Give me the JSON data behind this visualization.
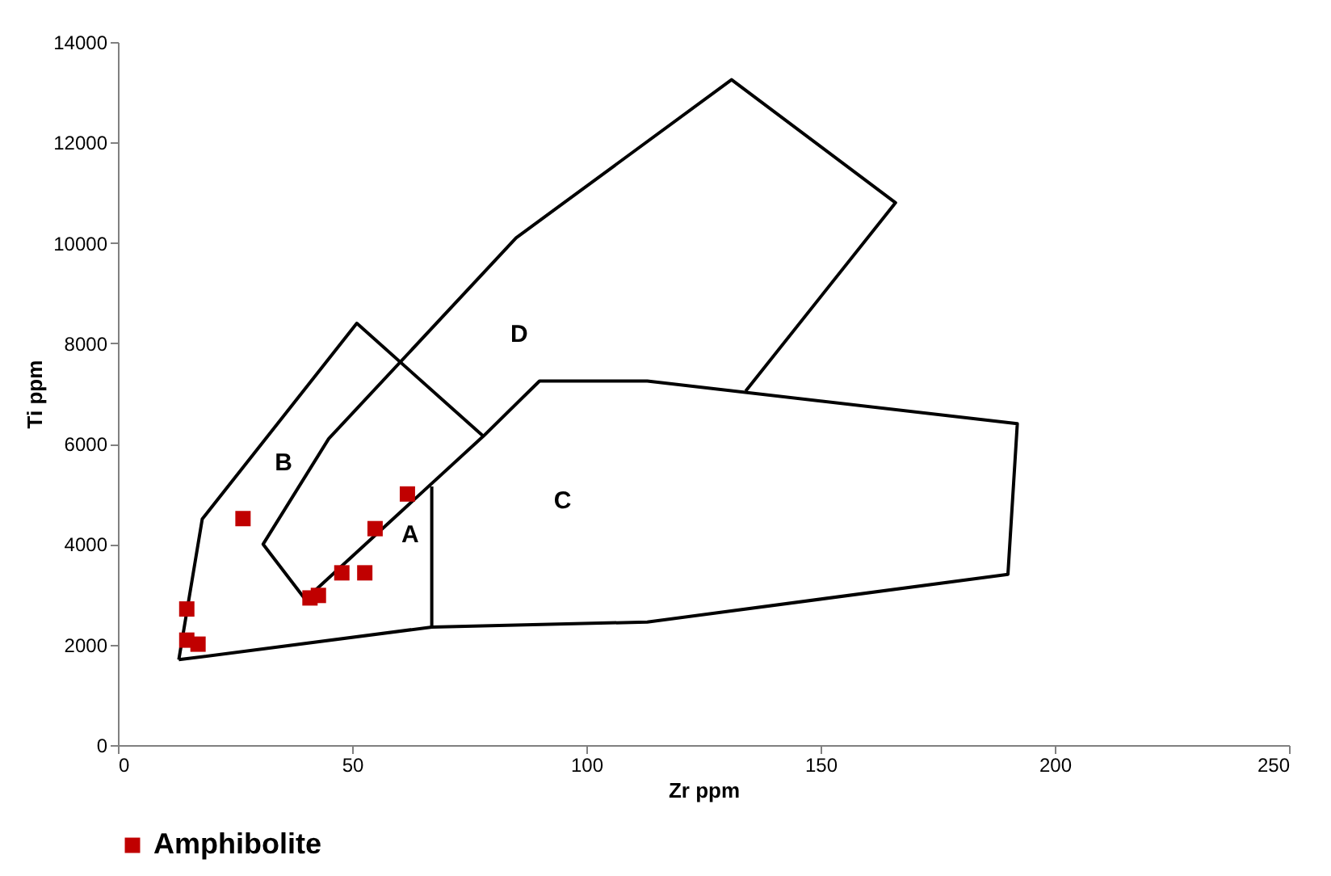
{
  "chart_data": {
    "type": "scatter",
    "xlabel": "Zr ppm",
    "ylabel": "Ti ppm",
    "xlim": [
      0,
      250
    ],
    "xticks": [
      0,
      50,
      100,
      150,
      200,
      250
    ],
    "ylim": [
      0,
      14000
    ],
    "yticks": [
      0,
      2000,
      4000,
      6000,
      8000,
      10000,
      12000,
      14000
    ],
    "grid": false,
    "legend": "bottom left",
    "series": [
      {
        "type": "line",
        "color": "#000000",
        "marker": "none",
        "line_style": "solid",
        "x": [
          67,
          67
        ],
        "values": [
          2350,
          5150
        ]
      },
      {
        "type": "line",
        "color": "#000000",
        "marker": "none",
        "line_style": "solid",
        "x": [
          13,
          18,
          51,
          78
        ],
        "values": [
          1700,
          4500,
          8400,
          6150
        ]
      },
      {
        "type": "line",
        "color": "#000000",
        "marker": "none",
        "line_style": "solid",
        "x": [
          40,
          78,
          90,
          113,
          192,
          190,
          113,
          67,
          13
        ],
        "values": [
          2900,
          6150,
          7250,
          7250,
          6400,
          3400,
          2450,
          2350,
          1700
        ]
      },
      {
        "type": "line",
        "color": "#000000",
        "marker": "none",
        "line_style": "solid",
        "x": [
          40,
          31,
          45,
          85,
          131,
          166,
          134
        ],
        "values": [
          2900,
          4000,
          6100,
          10100,
          13250,
          10800,
          7050
        ]
      },
      {
        "type": "scatter",
        "name": "Amphibolite",
        "color": "#c00000",
        "marker": "square",
        "x": [
          14.7,
          14.7,
          17.1,
          26.7,
          41.0,
          42.8,
          47.8,
          52.7,
          54.9,
          61.8
        ],
        "values": [
          2710,
          2090,
          2010,
          4510,
          2930,
          2980,
          3430,
          3430,
          4310,
          5000
        ]
      }
    ],
    "annotations": [
      "A",
      "B",
      "C",
      "D"
    ]
  }
}
